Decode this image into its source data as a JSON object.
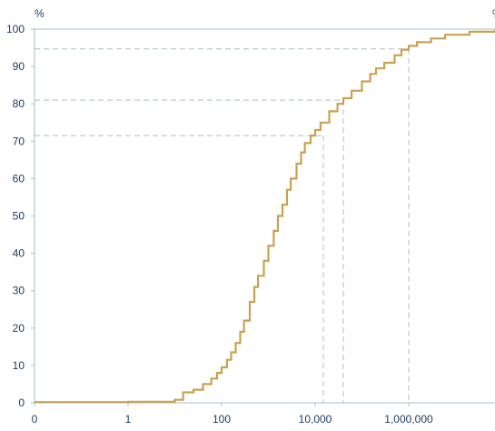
{
  "chart_data": {
    "type": "line",
    "title": "",
    "xlabel": "",
    "ylabel": "",
    "y_unit_left": "%",
    "y_unit_right": "%",
    "x_scale": "log",
    "x_ticks": [
      {
        "value": 0.01,
        "label": "0"
      },
      {
        "value": 1,
        "label": "1"
      },
      {
        "value": 100,
        "label": "100"
      },
      {
        "value": 10000,
        "label": "10,000"
      },
      {
        "value": 1000000,
        "label": "1,000,000"
      }
    ],
    "x_range": [
      0.01,
      100000000
    ],
    "y_ticks": [
      0,
      10,
      20,
      30,
      40,
      50,
      60,
      70,
      80,
      90,
      100
    ],
    "ylim": [
      0,
      100
    ],
    "grid": false,
    "series": [
      {
        "color": "#c8a253",
        "step": true,
        "points": [
          [
            0.01,
            0.2
          ],
          [
            1,
            0.3
          ],
          [
            10,
            0.8
          ],
          [
            15,
            2.8
          ],
          [
            25,
            3.5
          ],
          [
            40,
            5
          ],
          [
            60,
            6.5
          ],
          [
            80,
            8
          ],
          [
            100,
            9.5
          ],
          [
            130,
            11.5
          ],
          [
            160,
            13.5
          ],
          [
            200,
            16
          ],
          [
            250,
            19
          ],
          [
            300,
            22
          ],
          [
            400,
            27
          ],
          [
            500,
            31
          ],
          [
            600,
            34
          ],
          [
            800,
            38
          ],
          [
            1000,
            42
          ],
          [
            1300,
            46
          ],
          [
            1600,
            50
          ],
          [
            2000,
            53
          ],
          [
            2500,
            57
          ],
          [
            3000,
            60
          ],
          [
            4000,
            64
          ],
          [
            5000,
            67
          ],
          [
            6000,
            69.5
          ],
          [
            8000,
            71.5
          ],
          [
            10000,
            73
          ],
          [
            13000,
            75
          ],
          [
            20000,
            78
          ],
          [
            30000,
            80
          ],
          [
            40000,
            81.5
          ],
          [
            60000,
            83.5
          ],
          [
            100000,
            86
          ],
          [
            150000,
            88
          ],
          [
            200000,
            89.5
          ],
          [
            300000,
            91
          ],
          [
            500000,
            93
          ],
          [
            700000,
            94.5
          ],
          [
            1000000,
            95.5
          ],
          [
            1500000,
            96.5
          ],
          [
            3000000,
            97.5
          ],
          [
            6000000,
            98.5
          ],
          [
            20000000,
            99.3
          ],
          [
            100000000,
            99.8
          ]
        ]
      }
    ],
    "reference_lines": [
      {
        "x": 15000,
        "y": 71.5
      },
      {
        "x": 40000,
        "y": 81
      },
      {
        "x": 1000000,
        "y": 94.7
      }
    ]
  }
}
